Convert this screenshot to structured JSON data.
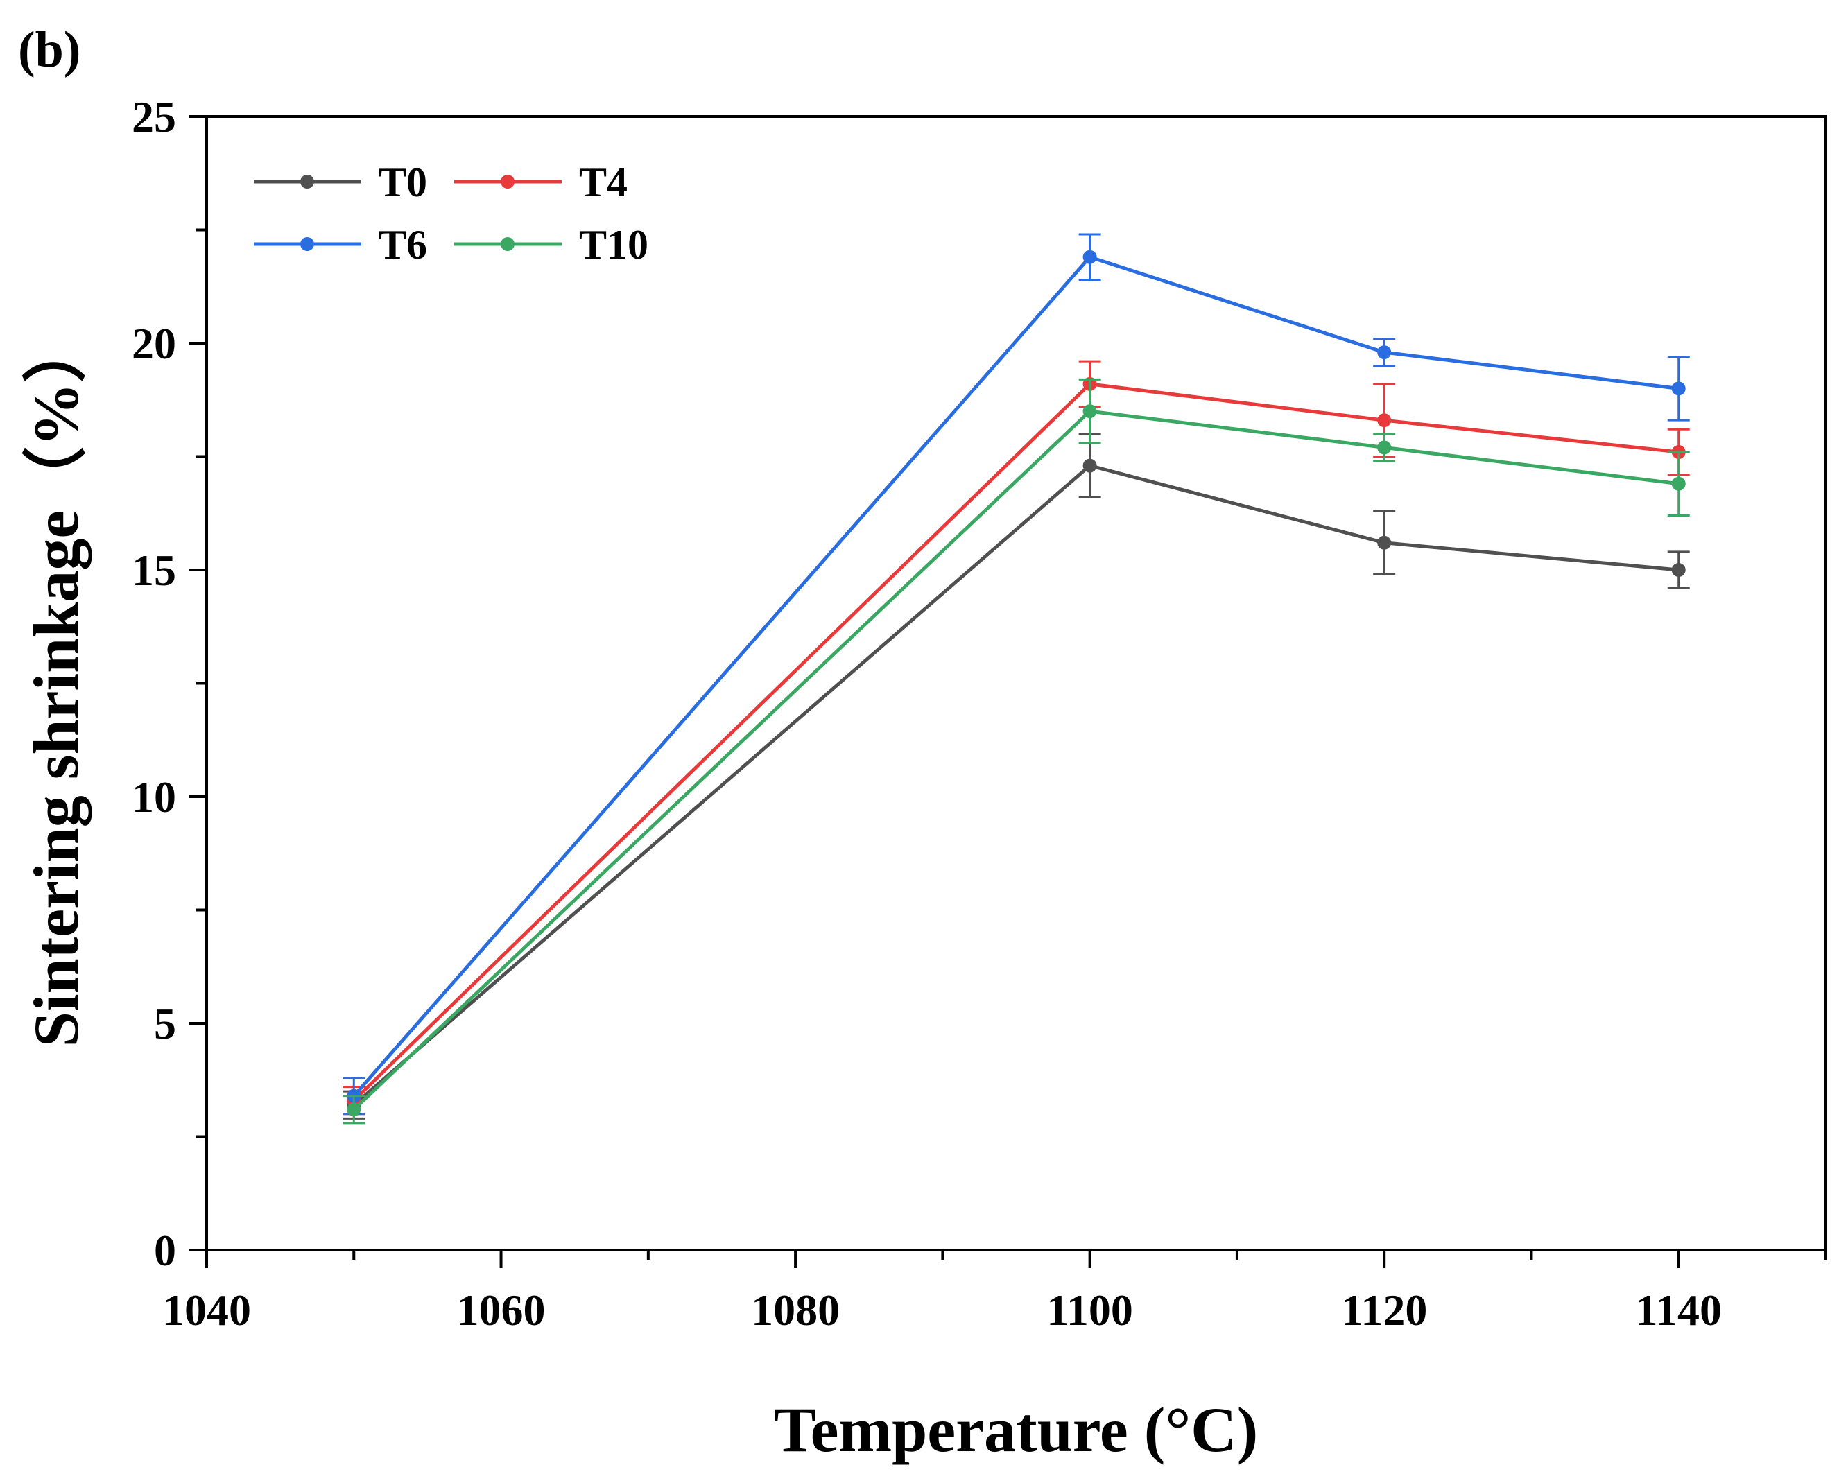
{
  "panel_label": "(b)",
  "chart_data": {
    "type": "line",
    "title": "",
    "xlabel": "Temperature (°C)",
    "ylabel": "Sintering shrinkage（%）",
    "xlim": [
      1040,
      1150
    ],
    "ylim": [
      0,
      25
    ],
    "x_ticks": [
      1040,
      1060,
      1080,
      1100,
      1120,
      1140
    ],
    "x_tick_labels": [
      "1040",
      "1060",
      "1080",
      "1100",
      "1120",
      "1140"
    ],
    "x_minor_ticks": [
      1050,
      1070,
      1090,
      1110,
      1130,
      1150
    ],
    "y_ticks": [
      0,
      5,
      10,
      15,
      20,
      25
    ],
    "y_tick_labels": [
      "0",
      "5",
      "10",
      "15",
      "20",
      "25"
    ],
    "y_minor_ticks": [
      2.5,
      7.5,
      12.5,
      17.5,
      22.5
    ],
    "grid": false,
    "legend_position": "top-left",
    "x": [
      1050,
      1100,
      1120,
      1140
    ],
    "series": [
      {
        "name": "T0",
        "color": "#505050",
        "values": [
          3.2,
          17.3,
          15.6,
          15.0
        ],
        "errors": [
          0.3,
          0.7,
          0.7,
          0.4
        ]
      },
      {
        "name": "T4",
        "color": "#e83a3a",
        "values": [
          3.3,
          19.1,
          18.3,
          17.6
        ],
        "errors": [
          0.3,
          0.5,
          0.8,
          0.5
        ]
      },
      {
        "name": "T6",
        "color": "#2a6de0",
        "values": [
          3.4,
          21.9,
          19.8,
          19.0
        ],
        "errors": [
          0.4,
          0.5,
          0.3,
          0.7
        ]
      },
      {
        "name": "T10",
        "color": "#3aa863",
        "values": [
          3.1,
          18.5,
          17.7,
          16.9
        ],
        "errors": [
          0.3,
          0.7,
          0.3,
          0.7
        ]
      }
    ]
  }
}
